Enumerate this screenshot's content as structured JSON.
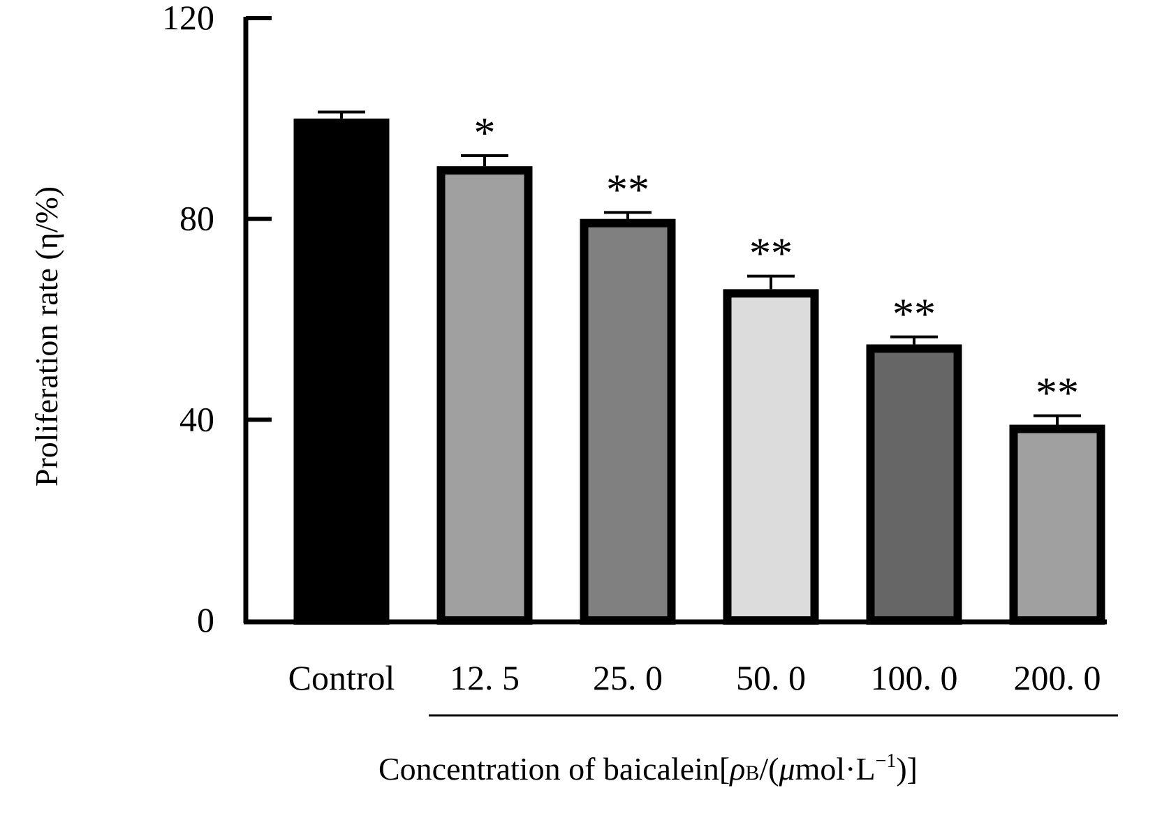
{
  "chart_data": {
    "type": "bar",
    "title": "",
    "xlabel": "Concentration of baicalein[ρB/(μmol·L⁻¹)]",
    "xlabel_parts": {
      "prefix": "Concentration of baicalein[",
      "rho": "ρ",
      "rho_sub": "B",
      "mid": "/(",
      "mu": "μ",
      "unit": "mol",
      "dot": "·",
      "unit2": "L",
      "sup": "−1",
      "suffix": ")]"
    },
    "ylabel": "Proliferation rate (η/%)",
    "ylim": [
      0,
      120
    ],
    "yticks": [
      0,
      40,
      80,
      120
    ],
    "ytick_labels": [
      "0",
      "40",
      "80",
      "120"
    ],
    "categories": [
      "Control",
      "12. 5",
      "25. 0",
      "50. 0",
      "100. 0",
      "200. 0"
    ],
    "values": [
      100.0,
      90.5,
      80.0,
      66.0,
      55.0,
      39.0
    ],
    "errors": [
      1.3,
      2.1,
      1.3,
      2.6,
      1.5,
      1.8
    ],
    "significance": [
      "",
      "*",
      "**",
      "**",
      "**",
      "**"
    ],
    "colors": [
      "#000000",
      "#a0a0a0",
      "#808080",
      "#dcdcdc",
      "#666666",
      "#a0a0a0"
    ],
    "edge_color": "#000000",
    "grid": false,
    "legend": "none"
  }
}
